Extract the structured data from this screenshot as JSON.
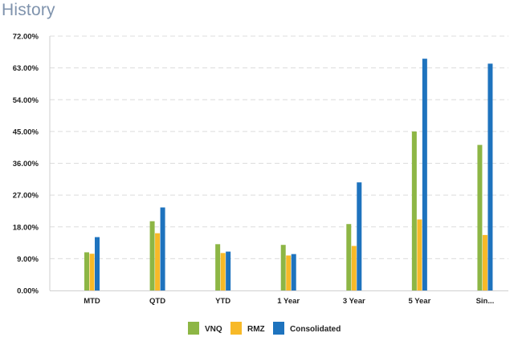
{
  "header": {
    "title": "History"
  },
  "chart_data": {
    "type": "bar",
    "title": "",
    "xlabel": "",
    "ylabel": "",
    "categories": [
      "MTD",
      "QTD",
      "YTD",
      "1 Year",
      "3 Year",
      "5 Year",
      "Sin..."
    ],
    "series": [
      {
        "name": "VNQ",
        "color": "#8db645",
        "values": [
          10.8,
          19.6,
          13.1,
          12.9,
          18.8,
          45.0,
          41.2
        ]
      },
      {
        "name": "RMZ",
        "color": "#f7b928",
        "values": [
          10.4,
          16.2,
          10.6,
          9.9,
          12.6,
          20.1,
          15.7
        ]
      },
      {
        "name": "Consolidated",
        "color": "#1e73be",
        "values": [
          15.1,
          23.5,
          11.0,
          10.3,
          30.6,
          65.6,
          64.2
        ]
      }
    ],
    "yticks": [
      "0.00%",
      "9.00%",
      "18.00%",
      "27.00%",
      "36.00%",
      "45.00%",
      "54.00%",
      "63.00%",
      "72.00%"
    ],
    "ylim": [
      0,
      72
    ],
    "grid": true,
    "legend_position": "bottom"
  }
}
